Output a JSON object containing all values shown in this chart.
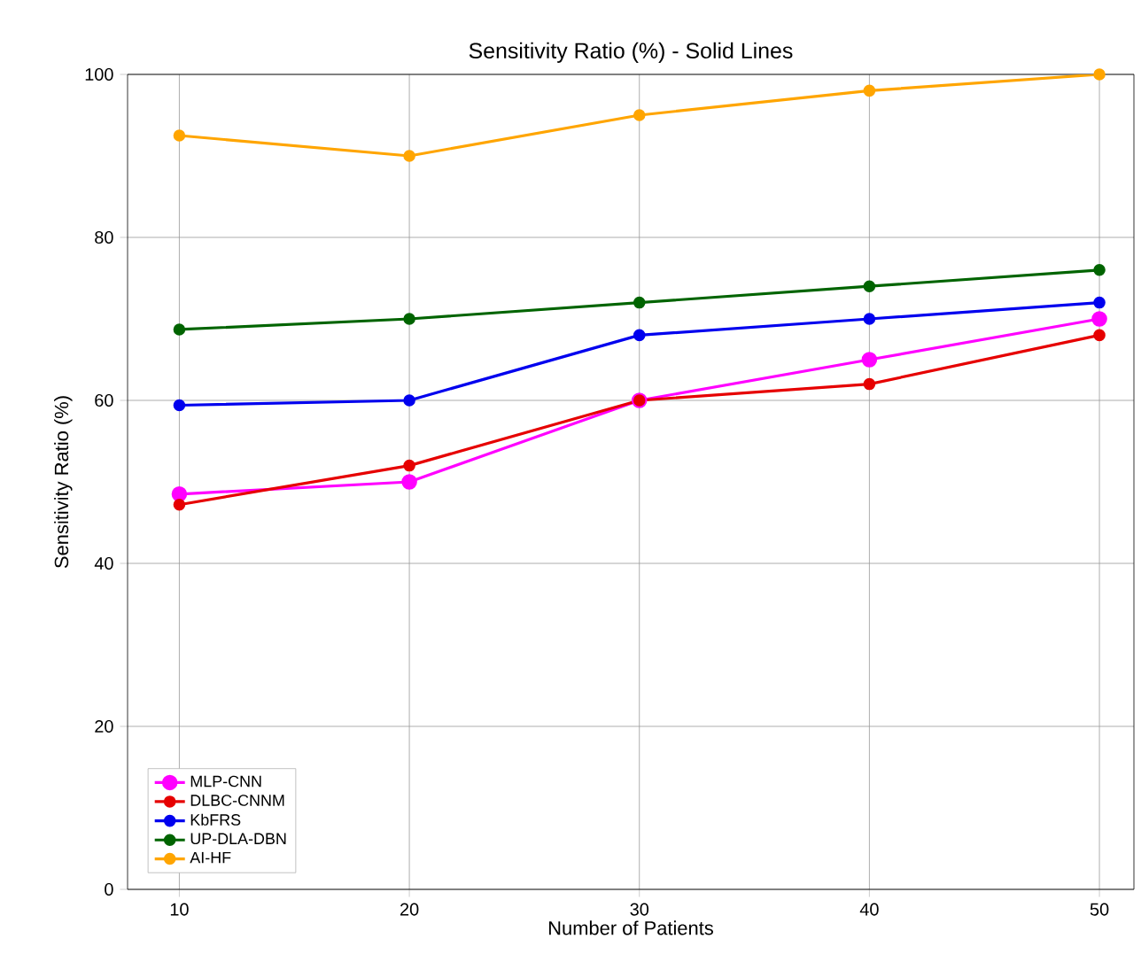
{
  "chart_data": {
    "type": "line",
    "title": "Sensitivity Ratio (%) - Solid Lines",
    "xlabel": "Number of Patients",
    "ylabel": "Sensitivity Ratio (%)",
    "x": [
      10,
      20,
      30,
      40,
      50
    ],
    "series": [
      {
        "name": "MLP-CNN",
        "color": "#ff00ff",
        "values": [
          48.5,
          50,
          60,
          65,
          70
        ]
      },
      {
        "name": "DLBC-CNNM",
        "color": "#e60000",
        "values": [
          47.2,
          52,
          60,
          62,
          68
        ]
      },
      {
        "name": "KbFRS",
        "color": "#0000ee",
        "values": [
          59.4,
          60,
          68,
          70,
          72
        ]
      },
      {
        "name": "UP-DLA-DBN",
        "color": "#006400",
        "values": [
          68.7,
          70,
          72,
          74,
          76
        ]
      },
      {
        "name": "AI-HF",
        "color": "#ffa500",
        "values": [
          92.5,
          90,
          95,
          98,
          100
        ]
      }
    ],
    "xlim": [
      7.75,
      51.5
    ],
    "xticks": [
      10,
      20,
      30,
      40,
      50
    ],
    "ylim": [
      0,
      100
    ],
    "yticks": [
      0,
      20,
      40,
      60,
      80,
      100
    ],
    "grid": true,
    "legend": "bottom left",
    "marker": "circle",
    "line_style": "solid"
  }
}
